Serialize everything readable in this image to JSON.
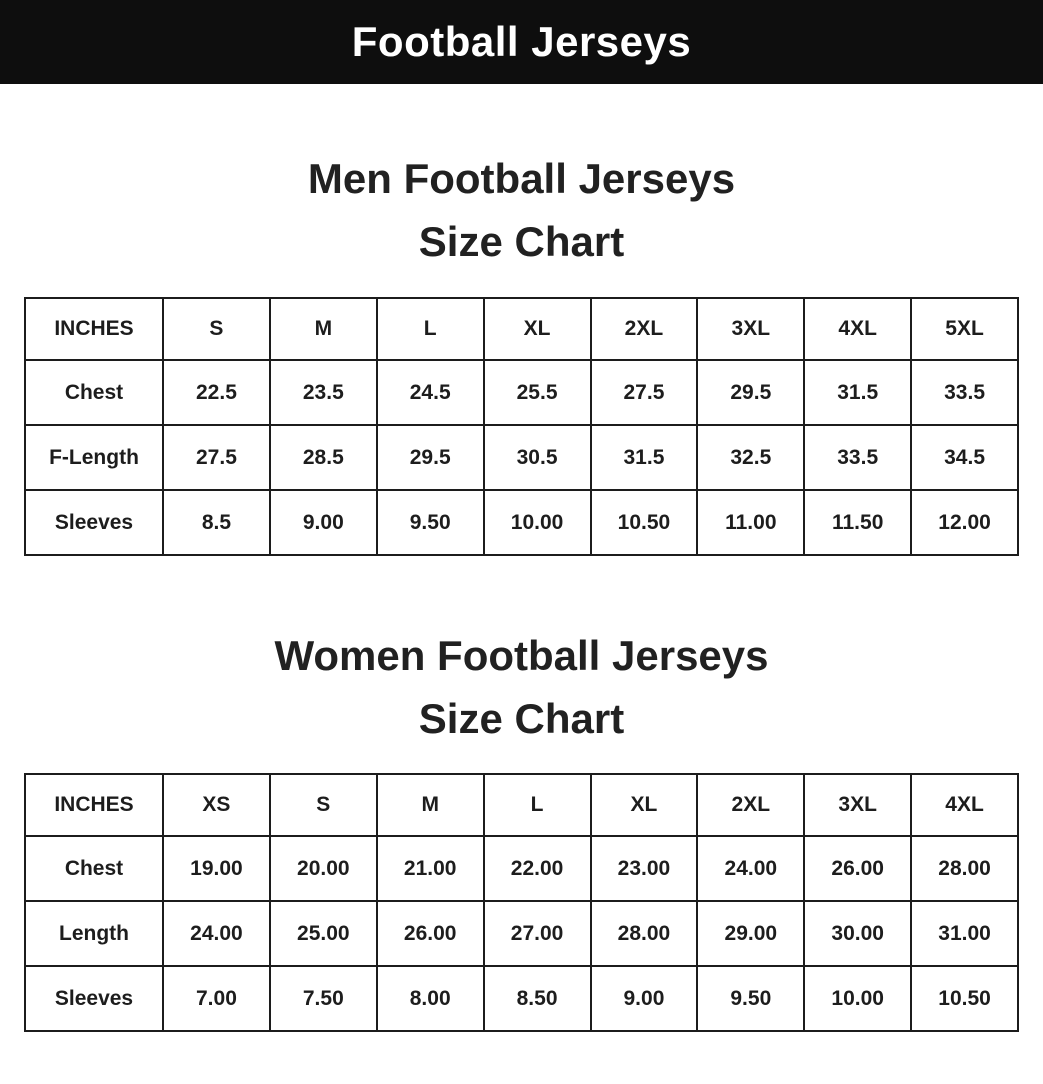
{
  "title_bar": {
    "title": "Football Jerseys",
    "bg_color": "#0e0e0e",
    "text_color": "#ffffff"
  },
  "sections": [
    {
      "heading_line1": "Men Football Jerseys",
      "heading_line2": "Size Chart",
      "table": {
        "columns": [
          "INCHES",
          "S",
          "M",
          "L",
          "XL",
          "2XL",
          "3XL",
          "4XL",
          "5XL"
        ],
        "rows": [
          {
            "label": "Chest",
            "values": [
              "22.5",
              "23.5",
              "24.5",
              "25.5",
              "27.5",
              "29.5",
              "31.5",
              "33.5"
            ]
          },
          {
            "label": "F-Length",
            "values": [
              "27.5",
              "28.5",
              "29.5",
              "30.5",
              "31.5",
              "32.5",
              "33.5",
              "34.5"
            ]
          },
          {
            "label": "Sleeves",
            "values": [
              "8.5",
              "9.00",
              "9.50",
              "10.00",
              "10.50",
              "11.00",
              "11.50",
              "12.00"
            ]
          }
        ]
      }
    },
    {
      "heading_line1": "Women Football Jerseys",
      "heading_line2": "Size Chart",
      "table": {
        "columns": [
          "INCHES",
          "XS",
          "S",
          "M",
          "L",
          "XL",
          "2XL",
          "3XL",
          "4XL"
        ],
        "rows": [
          {
            "label": "Chest",
            "values": [
              "19.00",
              "20.00",
              "21.00",
              "22.00",
              "23.00",
              "24.00",
              "26.00",
              "28.00"
            ]
          },
          {
            "label": "Length",
            "values": [
              "24.00",
              "25.00",
              "26.00",
              "27.00",
              "28.00",
              "29.00",
              "30.00",
              "31.00"
            ]
          },
          {
            "label": "Sleeves",
            "values": [
              "7.00",
              "7.50",
              "8.00",
              "8.50",
              "9.00",
              "9.50",
              "10.00",
              "10.50"
            ]
          }
        ]
      }
    }
  ]
}
